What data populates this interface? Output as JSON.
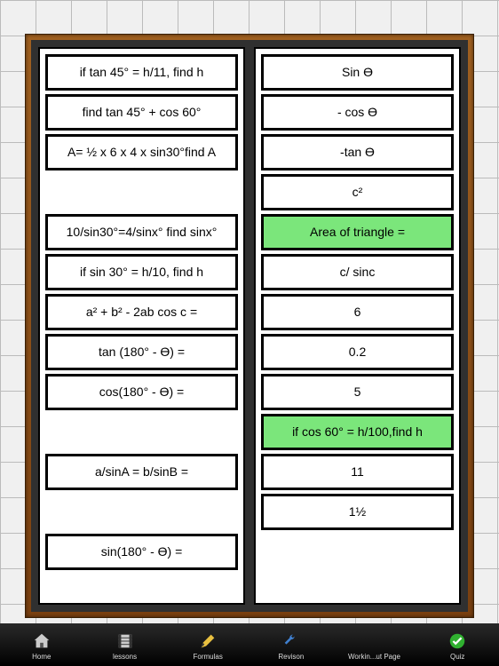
{
  "board": {
    "frame_color_top": "#a06020",
    "frame_color_bottom": "#7a4010",
    "inner_color": "#303030",
    "panel_bg": "#ffffff",
    "card_border": "#000000",
    "highlight_bg": "#7be67b"
  },
  "left_panel": {
    "slots": [
      {
        "text": "if tan 45° = h/11, find h",
        "empty": false,
        "highlight": false
      },
      {
        "text": "find tan 45° + cos 60°",
        "empty": false,
        "highlight": false
      },
      {
        "text": "A= ½ x 6 x 4 x sin30°find A",
        "empty": false,
        "highlight": false
      },
      {
        "text": "",
        "empty": true,
        "highlight": false
      },
      {
        "text": "10/sin30°=4/sinx° find sinx°",
        "empty": false,
        "highlight": false
      },
      {
        "text": "if sin 30° = h/10, find h",
        "empty": false,
        "highlight": false
      },
      {
        "text": "a² + b² - 2ab cos c =",
        "empty": false,
        "highlight": false
      },
      {
        "text": "tan (180° - Ө) =",
        "empty": false,
        "highlight": false
      },
      {
        "text": "cos(180° - Ө) =",
        "empty": false,
        "highlight": false
      },
      {
        "text": "",
        "empty": true,
        "highlight": false
      },
      {
        "text": "a/sinA = b/sinB =",
        "empty": false,
        "highlight": false
      },
      {
        "text": "",
        "empty": true,
        "highlight": false
      },
      {
        "text": "sin(180° - Ө) =",
        "empty": false,
        "highlight": false
      }
    ]
  },
  "right_panel": {
    "slots": [
      {
        "text": "Sin Ө",
        "empty": false,
        "highlight": false
      },
      {
        "text": "- cos Ө",
        "empty": false,
        "highlight": false
      },
      {
        "text": "-tan Ө",
        "empty": false,
        "highlight": false
      },
      {
        "text": "c²",
        "empty": false,
        "highlight": false
      },
      {
        "text": "Area of triangle =",
        "empty": false,
        "highlight": true
      },
      {
        "text": "c/ sinc",
        "empty": false,
        "highlight": false
      },
      {
        "text": "6",
        "empty": false,
        "highlight": false
      },
      {
        "text": "0.2",
        "empty": false,
        "highlight": false
      },
      {
        "text": "5",
        "empty": false,
        "highlight": false
      },
      {
        "text": "if cos 60° = h/100,find h",
        "empty": false,
        "highlight": true
      },
      {
        "text": "11",
        "empty": false,
        "highlight": false
      },
      {
        "text": "1½",
        "empty": false,
        "highlight": false
      },
      {
        "text": "",
        "empty": true,
        "highlight": false
      }
    ]
  },
  "tabbar": {
    "items": [
      {
        "label": "Home",
        "icon": "home-icon"
      },
      {
        "label": "lessons",
        "icon": "film-icon"
      },
      {
        "label": "Formulas",
        "icon": "pencil-icon"
      },
      {
        "label": "Revison",
        "icon": "wrench-icon"
      },
      {
        "label": "Workin...ut Page",
        "icon": "blank-icon"
      },
      {
        "label": "Quiz",
        "icon": "check-icon"
      }
    ]
  }
}
